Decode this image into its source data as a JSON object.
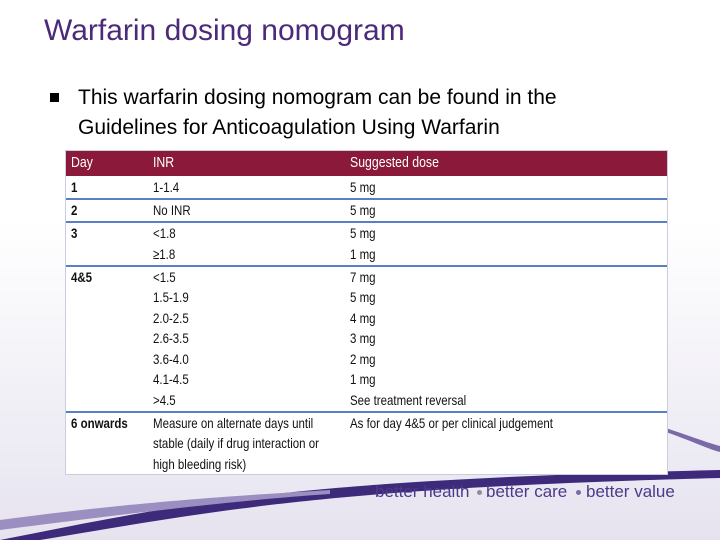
{
  "title": "Warfarin dosing nomogram",
  "bullet": [
    "This warfarin dosing nomogram can be found in the",
    "Guidelines for Anticoagulation Using Warfarin"
  ],
  "table": {
    "header": [
      "Day",
      "INR",
      "Suggested dose"
    ],
    "rows": [
      {
        "day": "1",
        "inr": [
          "1-1.4"
        ],
        "dose": [
          "5 mg"
        ]
      },
      {
        "day": "2",
        "inr": [
          "No INR"
        ],
        "dose": [
          "5 mg"
        ]
      },
      {
        "day": "3",
        "inr": [
          "<1.8",
          "≥1.8"
        ],
        "dose": [
          "5 mg",
          "1 mg"
        ]
      },
      {
        "day": "4&5",
        "inr": [
          "<1.5",
          "1.5-1.9",
          "2.0-2.5",
          "2.6-3.5",
          "3.6-4.0",
          "4.1-4.5",
          ">4.5"
        ],
        "dose": [
          "7 mg",
          "5 mg",
          "4 mg",
          "3 mg",
          "2 mg",
          "1 mg",
          "See treatment reversal"
        ]
      },
      {
        "day": "6 onwards",
        "inr": [
          "Measure on alternate days until",
          "stable (daily if drug interaction or",
          "high bleeding risk)"
        ],
        "dose": [
          "As for day 4&5 or per clinical judgement"
        ]
      }
    ]
  },
  "footer": [
    "better health",
    "better care",
    "better value"
  ]
}
